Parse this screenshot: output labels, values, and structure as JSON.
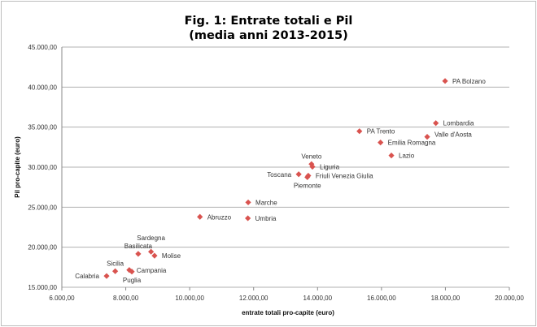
{
  "chart_data": {
    "type": "scatter",
    "title": [
      "Fig. 1: Entrate totali e Pil",
      "(media anni 2013-2015)"
    ],
    "xlabel": "entrate totali pro-capite (euro)",
    "ylabel": "Pil pro-capite (euro)",
    "xlim": [
      6000,
      20000
    ],
    "ylim": [
      15000,
      45000
    ],
    "xticks": [
      6000,
      8000,
      10000,
      12000,
      14000,
      16000,
      18000,
      20000
    ],
    "yticks": [
      15000,
      20000,
      25000,
      30000,
      35000,
      40000,
      45000
    ],
    "xtick_labels": [
      "6.000,00",
      "8.000,00",
      "10.000,00",
      "12.000,00",
      "14.000,00",
      "16.000,00",
      "18.000,00",
      "20.000,00"
    ],
    "ytick_labels": [
      "15.000,00",
      "20.000,00",
      "25.000,00",
      "30.000,00",
      "35.000,00",
      "40.000,00",
      "45.000,00"
    ],
    "grid": "horizontal",
    "marker_color": "#d9534f",
    "points": [
      {
        "label": "Calabria",
        "x": 7400,
        "y": 16400,
        "label_side": "left"
      },
      {
        "label": "Sicilia",
        "x": 7670,
        "y": 17000,
        "label_side": "above"
      },
      {
        "label": "Campania",
        "x": 8110,
        "y": 17150,
        "label_side": "right"
      },
      {
        "label": "Puglia",
        "x": 8190,
        "y": 16950,
        "label_side": "below"
      },
      {
        "label": "Basilicata",
        "x": 8390,
        "y": 19170,
        "label_side": "above"
      },
      {
        "label": "Sardegna",
        "x": 8790,
        "y": 19440,
        "label_side": "above"
      },
      {
        "label": "Molise",
        "x": 8900,
        "y": 18940,
        "label_side": "right"
      },
      {
        "label": "Abruzzo",
        "x": 10320,
        "y": 23790,
        "label_side": "right"
      },
      {
        "label": "Marche",
        "x": 11830,
        "y": 25600,
        "label_side": "right"
      },
      {
        "label": "Umbria",
        "x": 11820,
        "y": 23620,
        "label_side": "right"
      },
      {
        "label": "Toscana",
        "x": 13410,
        "y": 29110,
        "label_side": "left"
      },
      {
        "label": "Piemonte",
        "x": 13680,
        "y": 28740,
        "label_side": "below"
      },
      {
        "label": "Friuli Venezia Giulia",
        "x": 13710,
        "y": 28940,
        "label_side": "right"
      },
      {
        "label": "Veneto",
        "x": 13810,
        "y": 30380,
        "label_side": "above"
      },
      {
        "label": "Liguria",
        "x": 13840,
        "y": 30050,
        "label_side": "right"
      },
      {
        "label": "PA Trento",
        "x": 15310,
        "y": 34490,
        "label_side": "right"
      },
      {
        "label": "Emilia Romagna",
        "x": 15970,
        "y": 33080,
        "label_side": "right"
      },
      {
        "label": "Lazio",
        "x": 16310,
        "y": 31460,
        "label_side": "right"
      },
      {
        "label": "Valle d'Aosta",
        "x": 17430,
        "y": 33790,
        "label_side": "right"
      },
      {
        "label": "Lombardia",
        "x": 17700,
        "y": 35500,
        "label_side": "right"
      },
      {
        "label": "PA Bolzano",
        "x": 17990,
        "y": 40760,
        "label_side": "right"
      }
    ]
  }
}
